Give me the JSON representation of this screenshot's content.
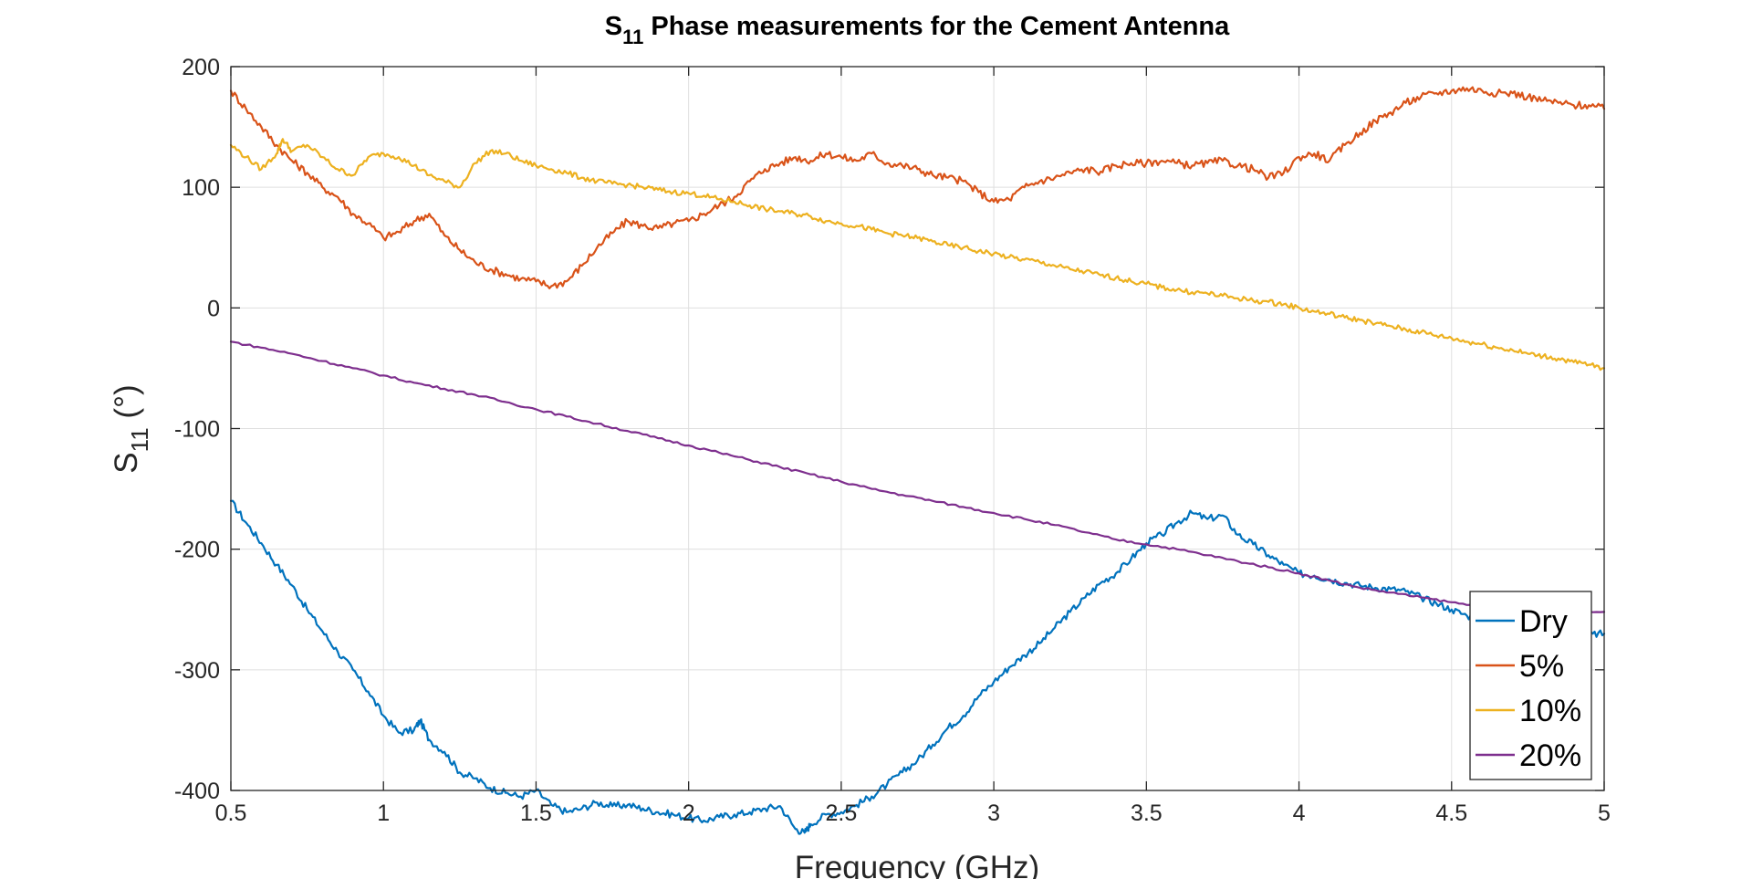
{
  "chart_data": {
    "type": "line",
    "title_main": "S",
    "title_sub": "11",
    "title_rest": " Phase measurements for the Cement Antenna",
    "xlabel": "Frequency (GHz)",
    "ylabel_main": "S",
    "ylabel_sub": "11",
    "ylabel_rest": " (°)",
    "xlim": [
      0.5,
      5
    ],
    "ylim": [
      -400,
      200
    ],
    "x_ticks": [
      "0.5",
      "1",
      "1.5",
      "2",
      "2.5",
      "3",
      "3.5",
      "4",
      "4.5",
      "5"
    ],
    "y_ticks": [
      "200",
      "100",
      "0",
      "-100",
      "-200",
      "-300",
      "-400"
    ],
    "grid": true,
    "legend_position": "bottom-right",
    "series": [
      {
        "name": "Dry",
        "color": "#0072BD",
        "x": [
          0.5,
          0.55,
          0.6,
          0.65,
          0.7,
          0.75,
          0.8,
          0.85,
          0.9,
          0.95,
          1.0,
          1.05,
          1.1,
          1.12,
          1.15,
          1.2,
          1.25,
          1.3,
          1.35,
          1.4,
          1.45,
          1.5,
          1.55,
          1.6,
          1.65,
          1.7,
          1.75,
          1.8,
          1.85,
          1.9,
          1.95,
          2.0,
          2.05,
          2.1,
          2.15,
          2.2,
          2.25,
          2.3,
          2.35,
          2.38,
          2.4,
          2.45,
          2.5,
          2.55,
          2.6,
          2.65,
          2.7,
          2.75,
          2.8,
          2.85,
          2.9,
          2.95,
          3.0,
          3.05,
          3.1,
          3.15,
          3.2,
          3.25,
          3.3,
          3.35,
          3.4,
          3.45,
          3.5,
          3.55,
          3.6,
          3.65,
          3.7,
          3.75,
          3.8,
          3.85,
          3.9,
          3.95,
          4.0,
          4.05,
          4.1,
          4.15,
          4.2,
          4.25,
          4.3,
          4.35,
          4.4,
          4.45,
          4.5,
          4.55,
          4.6,
          4.65,
          4.7,
          4.75,
          4.8,
          4.85,
          4.9,
          4.95,
          5.0
        ],
        "values": [
          -160,
          -178,
          -195,
          -213,
          -230,
          -250,
          -268,
          -285,
          -300,
          -318,
          -338,
          -352,
          -350,
          -342,
          -358,
          -368,
          -385,
          -390,
          -398,
          -402,
          -405,
          -400,
          -412,
          -418,
          -415,
          -410,
          -413,
          -412,
          -415,
          -418,
          -420,
          -423,
          -425,
          -422,
          -420,
          -418,
          -415,
          -413,
          -432,
          -435,
          -428,
          -420,
          -418,
          -412,
          -405,
          -395,
          -385,
          -375,
          -362,
          -348,
          -338,
          -322,
          -310,
          -298,
          -288,
          -278,
          -265,
          -252,
          -240,
          -228,
          -220,
          -208,
          -195,
          -188,
          -178,
          -170,
          -175,
          -172,
          -188,
          -196,
          -205,
          -213,
          -220,
          -222,
          -225,
          -228,
          -230,
          -232,
          -233,
          -235,
          -240,
          -245,
          -250,
          -255,
          -258,
          -262,
          -264,
          -266,
          -268,
          -270,
          -272,
          -271,
          -270
        ]
      },
      {
        "name": "5%",
        "color": "#D95319",
        "x": [
          0.5,
          0.55,
          0.6,
          0.65,
          0.7,
          0.75,
          0.8,
          0.85,
          0.9,
          0.95,
          1.0,
          1.05,
          1.1,
          1.15,
          1.2,
          1.25,
          1.3,
          1.35,
          1.4,
          1.45,
          1.5,
          1.55,
          1.6,
          1.65,
          1.7,
          1.75,
          1.8,
          1.85,
          1.9,
          1.95,
          2.0,
          2.05,
          2.1,
          2.15,
          2.2,
          2.25,
          2.3,
          2.35,
          2.4,
          2.45,
          2.5,
          2.55,
          2.6,
          2.65,
          2.7,
          2.75,
          2.8,
          2.85,
          2.9,
          2.95,
          3.0,
          3.05,
          3.1,
          3.15,
          3.2,
          3.25,
          3.3,
          3.35,
          3.4,
          3.45,
          3.5,
          3.55,
          3.6,
          3.65,
          3.7,
          3.75,
          3.8,
          3.85,
          3.9,
          3.95,
          4.0,
          4.05,
          4.1,
          4.15,
          4.2,
          4.25,
          4.3,
          4.35,
          4.4,
          4.45,
          4.5,
          4.55,
          4.6,
          4.65,
          4.7,
          4.75,
          4.8,
          4.85,
          4.9,
          4.95,
          5.0
        ],
        "values": [
          180,
          165,
          150,
          135,
          122,
          112,
          100,
          92,
          78,
          70,
          58,
          63,
          72,
          78,
          60,
          48,
          38,
          32,
          28,
          24,
          22,
          18,
          22,
          35,
          50,
          62,
          72,
          68,
          66,
          70,
          72,
          78,
          85,
          92,
          105,
          115,
          120,
          125,
          122,
          128,
          125,
          122,
          128,
          120,
          118,
          115,
          110,
          108,
          105,
          96,
          88,
          90,
          100,
          105,
          108,
          112,
          115,
          113,
          118,
          120,
          120,
          122,
          120,
          118,
          120,
          122,
          118,
          115,
          108,
          112,
          125,
          128,
          122,
          135,
          145,
          155,
          162,
          170,
          175,
          178,
          180,
          182,
          180,
          178,
          178,
          175,
          172,
          170,
          168,
          168,
          165
        ]
      },
      {
        "name": "10%",
        "color": "#EDB120",
        "x": [
          0.5,
          0.55,
          0.6,
          0.65,
          0.67,
          0.7,
          0.75,
          0.8,
          0.85,
          0.9,
          0.95,
          1.0,
          1.05,
          1.1,
          1.15,
          1.2,
          1.25,
          1.3,
          1.35,
          1.4,
          1.45,
          1.5,
          1.55,
          1.6,
          1.65,
          1.7,
          1.75,
          1.8,
          1.85,
          1.9,
          1.95,
          2.0,
          2.05,
          2.1,
          2.15,
          2.2,
          2.25,
          2.3,
          2.35,
          2.4,
          2.45,
          2.5,
          2.55,
          2.6,
          2.65,
          2.7,
          2.75,
          2.8,
          2.85,
          2.9,
          2.95,
          3.0,
          3.05,
          3.1,
          3.15,
          3.2,
          3.25,
          3.3,
          3.35,
          3.4,
          3.45,
          3.5,
          3.55,
          3.6,
          3.65,
          3.7,
          3.75,
          3.8,
          3.85,
          3.9,
          3.95,
          4.0,
          4.05,
          4.1,
          4.15,
          4.2,
          4.25,
          4.3,
          4.35,
          4.4,
          4.45,
          4.5,
          4.55,
          4.6,
          4.65,
          4.7,
          4.75,
          4.8,
          4.85,
          4.9,
          4.95,
          5.0
        ],
        "values": [
          135,
          125,
          115,
          128,
          140,
          130,
          135,
          125,
          115,
          110,
          125,
          128,
          125,
          118,
          110,
          105,
          100,
          120,
          130,
          128,
          122,
          118,
          115,
          112,
          108,
          105,
          103,
          102,
          100,
          98,
          96,
          95,
          93,
          90,
          88,
          85,
          82,
          80,
          78,
          76,
          72,
          70,
          68,
          65,
          62,
          60,
          58,
          55,
          52,
          50,
          47,
          45,
          42,
          40,
          38,
          35,
          32,
          30,
          27,
          25,
          22,
          20,
          17,
          15,
          13,
          12,
          10,
          8,
          6,
          5,
          3,
          0,
          -3,
          -5,
          -8,
          -10,
          -13,
          -15,
          -18,
          -20,
          -23,
          -25,
          -28,
          -30,
          -33,
          -35,
          -38,
          -40,
          -42,
          -45,
          -47,
          -50
        ]
      },
      {
        "name": "20%",
        "color": "#7E2F8E",
        "x": [
          0.5,
          0.6,
          0.7,
          0.8,
          0.9,
          1.0,
          1.1,
          1.2,
          1.3,
          1.4,
          1.5,
          1.6,
          1.7,
          1.8,
          1.9,
          2.0,
          2.1,
          2.2,
          2.3,
          2.4,
          2.5,
          2.6,
          2.7,
          2.8,
          2.9,
          3.0,
          3.1,
          3.2,
          3.3,
          3.4,
          3.5,
          3.6,
          3.7,
          3.8,
          3.9,
          4.0,
          4.1,
          4.2,
          4.3,
          4.4,
          4.5,
          4.6,
          4.7,
          4.8,
          4.9,
          5.0
        ],
        "values": [
          -28,
          -33,
          -38,
          -44,
          -50,
          -56,
          -62,
          -67,
          -72,
          -78,
          -84,
          -90,
          -96,
          -102,
          -108,
          -114,
          -120,
          -126,
          -132,
          -138,
          -144,
          -150,
          -155,
          -160,
          -165,
          -170,
          -175,
          -180,
          -186,
          -192,
          -196,
          -200,
          -205,
          -210,
          -215,
          -220,
          -226,
          -232,
          -236,
          -240,
          -244,
          -248,
          -250,
          -252,
          -252,
          -252
        ]
      }
    ]
  }
}
